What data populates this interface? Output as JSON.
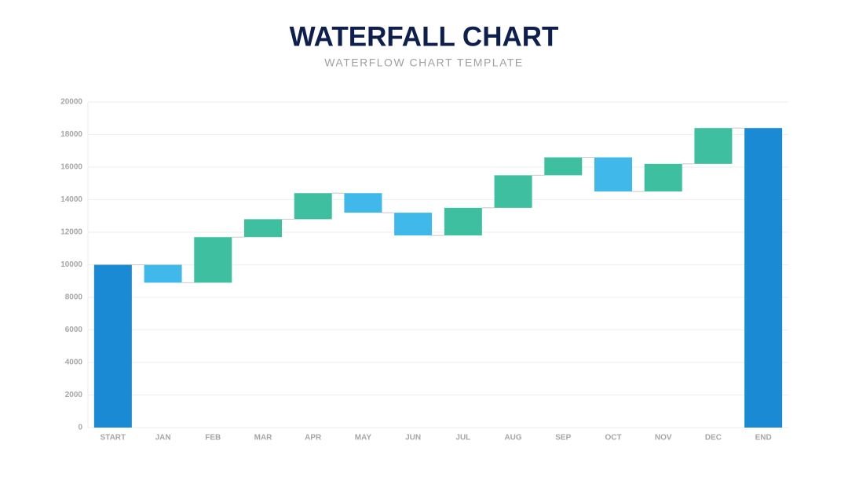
{
  "chart_data": {
    "type": "waterfall",
    "title": "WATERFALL CHART",
    "subtitle": "WATERFLOW CHART TEMPLATE",
    "categories": [
      "START",
      "JAN",
      "FEB",
      "MAR",
      "APR",
      "MAY",
      "JUN",
      "JUL",
      "AUG",
      "SEP",
      "OCT",
      "NOV",
      "DEC",
      "END"
    ],
    "values": [
      10000,
      -1100,
      2800,
      1100,
      1600,
      -1200,
      -1400,
      1700,
      2000,
      1100,
      -2100,
      1700,
      2200,
      18400
    ],
    "colors": {
      "total": "#1a8ad4",
      "increase": "#3dbfa0",
      "decrease": "#41b8ea"
    },
    "ylim": [
      0,
      20000
    ],
    "yticks": [
      0,
      2000,
      4000,
      6000,
      8000,
      10000,
      12000,
      14000,
      16000,
      18000,
      20000
    ],
    "grid": true
  }
}
